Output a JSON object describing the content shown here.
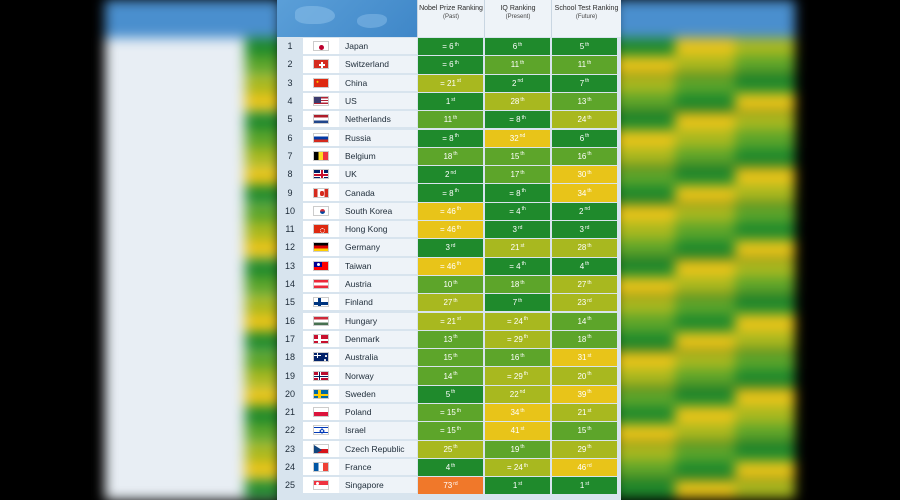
{
  "colors": {
    "rank_1_9": "#1f8a2c",
    "rank_10_19": "#5da52a",
    "rank_20_29": "#a8b81f",
    "rank_30_49": "#e8c419",
    "rank_50_plus": "#f0782a"
  },
  "chart_data": {
    "type": "table",
    "headers": [
      {
        "title": "Nobel Prize Ranking",
        "sub": "(Past)"
      },
      {
        "title": "IQ Ranking",
        "sub": "(Present)"
      },
      {
        "title": "School Test Ranking",
        "sub": "(Future)"
      }
    ],
    "rows": [
      {
        "rank": "1",
        "country": "Japan",
        "flag": "jp",
        "nobel": {
          "p": "= ",
          "n": "6",
          "s": "th",
          "v": 6
        },
        "iq": {
          "p": "",
          "n": "6",
          "s": "th",
          "v": 6
        },
        "school": {
          "p": "",
          "n": "5",
          "s": "th",
          "v": 5
        }
      },
      {
        "rank": "2",
        "country": "Switzerland",
        "flag": "ch",
        "nobel": {
          "p": "= ",
          "n": "6",
          "s": "th",
          "v": 6
        },
        "iq": {
          "p": "",
          "n": "11",
          "s": "th",
          "v": 11
        },
        "school": {
          "p": "",
          "n": "11",
          "s": "th",
          "v": 11
        }
      },
      {
        "rank": "3",
        "country": "China",
        "flag": "cn",
        "nobel": {
          "p": "= ",
          "n": "21",
          "s": "st",
          "v": 21
        },
        "iq": {
          "p": "",
          "n": "2",
          "s": "nd",
          "v": 2
        },
        "school": {
          "p": "",
          "n": "7",
          "s": "th",
          "v": 7
        }
      },
      {
        "rank": "4",
        "country": "US",
        "flag": "us",
        "nobel": {
          "p": "",
          "n": "1",
          "s": "st",
          "v": 1
        },
        "iq": {
          "p": "",
          "n": "28",
          "s": "th",
          "v": 28
        },
        "school": {
          "p": "",
          "n": "13",
          "s": "th",
          "v": 13
        }
      },
      {
        "rank": "5",
        "country": "Netherlands",
        "flag": "nl",
        "nobel": {
          "p": "",
          "n": "11",
          "s": "th",
          "v": 11
        },
        "iq": {
          "p": "= ",
          "n": "8",
          "s": "th",
          "v": 8
        },
        "school": {
          "p": "",
          "n": "24",
          "s": "th",
          "v": 24
        }
      },
      {
        "rank": "6",
        "country": "Russia",
        "flag": "ru",
        "nobel": {
          "p": "= ",
          "n": "8",
          "s": "th",
          "v": 8
        },
        "iq": {
          "p": "",
          "n": "32",
          "s": "nd",
          "v": 32
        },
        "school": {
          "p": "",
          "n": "6",
          "s": "th",
          "v": 6
        }
      },
      {
        "rank": "7",
        "country": "Belgium",
        "flag": "be",
        "nobel": {
          "p": "",
          "n": "18",
          "s": "th",
          "v": 18
        },
        "iq": {
          "p": "",
          "n": "15",
          "s": "th",
          "v": 15
        },
        "school": {
          "p": "",
          "n": "16",
          "s": "th",
          "v": 16
        }
      },
      {
        "rank": "8",
        "country": "UK",
        "flag": "uk",
        "nobel": {
          "p": "",
          "n": "2",
          "s": "nd",
          "v": 2
        },
        "iq": {
          "p": "",
          "n": "17",
          "s": "th",
          "v": 17
        },
        "school": {
          "p": "",
          "n": "30",
          "s": "th",
          "v": 30
        }
      },
      {
        "rank": "9",
        "country": "Canada",
        "flag": "ca",
        "nobel": {
          "p": "= ",
          "n": "8",
          "s": "th",
          "v": 8
        },
        "iq": {
          "p": "= ",
          "n": "8",
          "s": "th",
          "v": 8
        },
        "school": {
          "p": "",
          "n": "34",
          "s": "th",
          "v": 34
        }
      },
      {
        "rank": "10",
        "country": "South Korea",
        "flag": "kr",
        "nobel": {
          "p": "= ",
          "n": "46",
          "s": "th",
          "v": 46
        },
        "iq": {
          "p": "= ",
          "n": "4",
          "s": "th",
          "v": 4
        },
        "school": {
          "p": "",
          "n": "2",
          "s": "nd",
          "v": 2
        }
      },
      {
        "rank": "11",
        "country": "Hong Kong",
        "flag": "hk",
        "nobel": {
          "p": "= ",
          "n": "46",
          "s": "th",
          "v": 46
        },
        "iq": {
          "p": "",
          "n": "3",
          "s": "rd",
          "v": 3
        },
        "school": {
          "p": "",
          "n": "3",
          "s": "rd",
          "v": 3
        }
      },
      {
        "rank": "12",
        "country": "Germany",
        "flag": "de",
        "nobel": {
          "p": "",
          "n": "3",
          "s": "rd",
          "v": 3
        },
        "iq": {
          "p": "",
          "n": "21",
          "s": "st",
          "v": 21
        },
        "school": {
          "p": "",
          "n": "28",
          "s": "th",
          "v": 28
        }
      },
      {
        "rank": "13",
        "country": "Taiwan",
        "flag": "tw",
        "nobel": {
          "p": "= ",
          "n": "46",
          "s": "th",
          "v": 46
        },
        "iq": {
          "p": "= ",
          "n": "4",
          "s": "th",
          "v": 4
        },
        "school": {
          "p": "",
          "n": "4",
          "s": "th",
          "v": 4
        }
      },
      {
        "rank": "14",
        "country": "Austria",
        "flag": "at",
        "nobel": {
          "p": "",
          "n": "10",
          "s": "th",
          "v": 10
        },
        "iq": {
          "p": "",
          "n": "18",
          "s": "th",
          "v": 18
        },
        "school": {
          "p": "",
          "n": "27",
          "s": "th",
          "v": 27
        }
      },
      {
        "rank": "15",
        "country": "Finland",
        "flag": "fi",
        "nobel": {
          "p": "",
          "n": "27",
          "s": "th",
          "v": 27
        },
        "iq": {
          "p": "",
          "n": "7",
          "s": "th",
          "v": 7
        },
        "school": {
          "p": "",
          "n": "23",
          "s": "rd",
          "v": 23
        }
      },
      {
        "rank": "16",
        "country": "Hungary",
        "flag": "hu",
        "nobel": {
          "p": "= ",
          "n": "21",
          "s": "st",
          "v": 21
        },
        "iq": {
          "p": "= ",
          "n": "24",
          "s": "th",
          "v": 24
        },
        "school": {
          "p": "",
          "n": "14",
          "s": "th",
          "v": 14
        }
      },
      {
        "rank": "17",
        "country": "Denmark",
        "flag": "dk",
        "nobel": {
          "p": "",
          "n": "13",
          "s": "th",
          "v": 13
        },
        "iq": {
          "p": "= ",
          "n": "29",
          "s": "th",
          "v": 29
        },
        "school": {
          "p": "",
          "n": "18",
          "s": "th",
          "v": 18
        }
      },
      {
        "rank": "18",
        "country": "Australia",
        "flag": "au",
        "nobel": {
          "p": "",
          "n": "15",
          "s": "th",
          "v": 15
        },
        "iq": {
          "p": "",
          "n": "16",
          "s": "th",
          "v": 16
        },
        "school": {
          "p": "",
          "n": "31",
          "s": "st",
          "v": 31
        }
      },
      {
        "rank": "19",
        "country": "Norway",
        "flag": "no",
        "nobel": {
          "p": "",
          "n": "14",
          "s": "th",
          "v": 14
        },
        "iq": {
          "p": "= ",
          "n": "29",
          "s": "th",
          "v": 29
        },
        "school": {
          "p": "",
          "n": "20",
          "s": "th",
          "v": 20
        }
      },
      {
        "rank": "20",
        "country": "Sweden",
        "flag": "se",
        "nobel": {
          "p": "",
          "n": "5",
          "s": "th",
          "v": 5
        },
        "iq": {
          "p": "",
          "n": "22",
          "s": "nd",
          "v": 22
        },
        "school": {
          "p": "",
          "n": "39",
          "s": "th",
          "v": 39
        }
      },
      {
        "rank": "21",
        "country": "Poland",
        "flag": "pl",
        "nobel": {
          "p": "= ",
          "n": "15",
          "s": "th",
          "v": 15
        },
        "iq": {
          "p": "",
          "n": "34",
          "s": "th",
          "v": 34
        },
        "school": {
          "p": "",
          "n": "21",
          "s": "st",
          "v": 21
        }
      },
      {
        "rank": "22",
        "country": "Israel",
        "flag": "il",
        "nobel": {
          "p": "= ",
          "n": "15",
          "s": "th",
          "v": 15
        },
        "iq": {
          "p": "",
          "n": "41",
          "s": "st",
          "v": 41
        },
        "school": {
          "p": "",
          "n": "15",
          "s": "th",
          "v": 15
        }
      },
      {
        "rank": "23",
        "country": "Czech Republic",
        "flag": "cz",
        "nobel": {
          "p": "",
          "n": "25",
          "s": "th",
          "v": 25
        },
        "iq": {
          "p": "",
          "n": "19",
          "s": "th",
          "v": 19
        },
        "school": {
          "p": "",
          "n": "29",
          "s": "th",
          "v": 29
        }
      },
      {
        "rank": "24",
        "country": "France",
        "flag": "fr",
        "nobel": {
          "p": "",
          "n": "4",
          "s": "th",
          "v": 4
        },
        "iq": {
          "p": "= ",
          "n": "24",
          "s": "th",
          "v": 24
        },
        "school": {
          "p": "",
          "n": "46",
          "s": "rd",
          "v": 46
        }
      },
      {
        "rank": "25",
        "country": "Singapore",
        "flag": "sg",
        "nobel": {
          "p": "",
          "n": "73",
          "s": "rd",
          "v": 73
        },
        "iq": {
          "p": "",
          "n": "1",
          "s": "st",
          "v": 1
        },
        "school": {
          "p": "",
          "n": "1",
          "s": "st",
          "v": 1
        }
      }
    ]
  }
}
